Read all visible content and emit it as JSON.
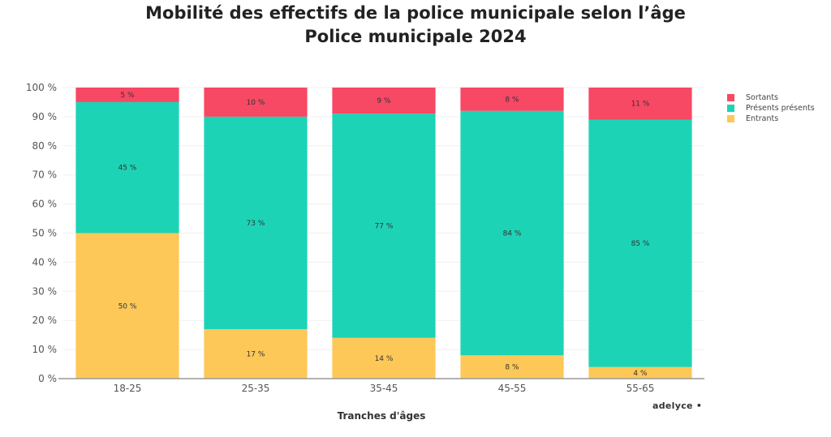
{
  "chart_data": {
    "type": "bar",
    "stacked": true,
    "title": "Mobilité des effectifs de la police municipale selon l’âge",
    "subtitle": "Police municipale 2024",
    "xlabel": "Tranches d'âges",
    "ylabel": "",
    "ylim": [
      0,
      100
    ],
    "yticks": [
      "0 %",
      "10 %",
      "20 %",
      "30 %",
      "40 %",
      "50 %",
      "60 %",
      "70 %",
      "80 %",
      "90 %",
      "100 %"
    ],
    "categories": [
      "18-25",
      "25-35",
      "35-45",
      "45-55",
      "55-65"
    ],
    "series": [
      {
        "name": "Entrants",
        "color": "#fdc858",
        "values": [
          50,
          17,
          14,
          8,
          4
        ]
      },
      {
        "name": "Présents présents",
        "color": "#1dd3b6",
        "values": [
          45,
          73,
          77,
          84,
          85
        ]
      },
      {
        "name": "Sortants",
        "color": "#f74864",
        "values": [
          5,
          10,
          9,
          8,
          11
        ]
      }
    ],
    "legend": {
      "position": "top-right",
      "entries": [
        {
          "label": "Sortants",
          "color": "#f74864"
        },
        {
          "label": "Présents présents",
          "color": "#1dd3b6"
        },
        {
          "label": "Entrants",
          "color": "#fdc858"
        }
      ]
    },
    "grid": true,
    "label_suffix": " %"
  },
  "branding": {
    "text": "adelyce •"
  }
}
